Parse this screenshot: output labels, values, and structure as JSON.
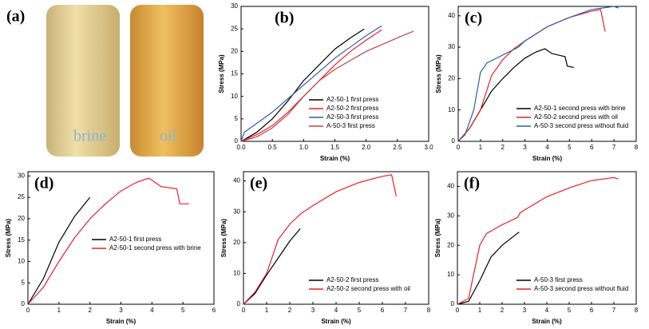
{
  "chart_data": [
    {
      "type": "image",
      "label": "(a)",
      "annotations": [
        "brine",
        "oil"
      ]
    },
    {
      "type": "line",
      "label": "(b)",
      "xlabel": "Strain (%)",
      "ylabel": "Stress (MPa)",
      "xlim": [
        0,
        3
      ],
      "xticks": [
        {
          "value": 0,
          "label": "0.0"
        },
        0.5,
        {
          "value": 1,
          "label": "1.0"
        },
        1.5,
        {
          "value": 2,
          "label": "2.0"
        },
        2.5,
        {
          "value": 3,
          "label": "3.0"
        }
      ],
      "ylim": [
        0,
        30
      ],
      "yticks": [
        0,
        5,
        10,
        15,
        20,
        25,
        30
      ],
      "legend": "lower right",
      "series": [
        {
          "name": "A2-50-1 first press",
          "color": "#000000",
          "x": [
            0,
            0.25,
            0.5,
            0.75,
            1.0,
            1.25,
            1.5,
            1.75,
            1.97
          ],
          "values": [
            0,
            2,
            5,
            9,
            13.5,
            17,
            20.5,
            23,
            25
          ]
        },
        {
          "name": "A2-50-2 first press",
          "color": "#e8202a",
          "x": [
            0,
            0.25,
            0.5,
            0.75,
            1.0,
            1.25,
            1.5,
            1.75,
            2.0,
            2.25
          ],
          "values": [
            0,
            1.5,
            3.5,
            6.5,
            10,
            13.5,
            17,
            20,
            22.5,
            24.8
          ]
        },
        {
          "name": "A2-50-3 first press",
          "color": "#2a5db0",
          "x": [
            0,
            0.05,
            0.25,
            0.5,
            0.75,
            1.0,
            1.25,
            1.5,
            1.75,
            2.0,
            2.25
          ],
          "values": [
            0,
            2,
            4,
            6.5,
            9.5,
            12.5,
            15.5,
            18.5,
            21,
            23.5,
            25.7
          ]
        },
        {
          "name": "A-50-3 first press",
          "color": "#c0404a",
          "x": [
            0,
            0.25,
            0.5,
            0.75,
            1.0,
            1.25,
            1.5,
            1.75,
            2.0,
            2.25,
            2.5,
            2.76
          ],
          "values": [
            0,
            1,
            3,
            6,
            10,
            13.5,
            16,
            18,
            20,
            21.5,
            23,
            24.5
          ]
        }
      ]
    },
    {
      "type": "line",
      "label": "(c)",
      "xlabel": "Strain (%)",
      "ylabel": "Stress (MPa)",
      "xlim": [
        0,
        8
      ],
      "xticks": [
        0,
        1,
        2,
        3,
        4,
        5,
        6,
        7,
        8
      ],
      "ylim": [
        0,
        43
      ],
      "yticks": [
        0,
        10,
        20,
        30,
        40
      ],
      "legend": "lower right",
      "series": [
        {
          "name": "A2-50-1 second press with brine",
          "color": "#000000",
          "x": [
            0,
            0.5,
            1,
            1.5,
            2,
            2.5,
            3,
            3.5,
            3.9,
            4.2,
            4.5,
            4.8,
            4.9,
            5.2
          ],
          "values": [
            0,
            4,
            10,
            16,
            20,
            23.5,
            26.5,
            28.5,
            29.5,
            28,
            27.5,
            27,
            24,
            23.5
          ]
        },
        {
          "name": "A2-50-2 second press with oil",
          "color": "#e8202a",
          "x": [
            0,
            0.5,
            1,
            1.5,
            2,
            2.5,
            3,
            4,
            5,
            6,
            6.4,
            6.6
          ],
          "values": [
            0,
            4,
            10,
            21,
            26,
            29.5,
            32,
            36.5,
            39.5,
            41.5,
            42,
            35
          ]
        },
        {
          "name": "A-50-3 second press without fluid",
          "color": "#2a5db0",
          "x": [
            0,
            0.3,
            0.7,
            1,
            1.3,
            2,
            2.7,
            3,
            4,
            5,
            6,
            7,
            7.2
          ],
          "values": [
            0,
            2,
            10,
            22,
            25,
            27.5,
            30,
            32,
            36.5,
            39.5,
            42,
            43,
            42.5
          ]
        }
      ]
    },
    {
      "type": "line",
      "label": "(d)",
      "xlabel": "Strain (%)",
      "ylabel": "Stress (MPa)",
      "xlim": [
        0,
        6
      ],
      "xticks": [
        0,
        1,
        2,
        3,
        4,
        5,
        6
      ],
      "ylim": [
        0,
        31
      ],
      "yticks": [
        0,
        5,
        10,
        15,
        20,
        25,
        30
      ],
      "legend": "center",
      "series": [
        {
          "name": "A2-50-1 first press",
          "color": "#000000",
          "x": [
            0,
            0.5,
            1,
            1.5,
            2
          ],
          "values": [
            0,
            6,
            14.5,
            20.5,
            25
          ]
        },
        {
          "name": "A2-50-1 second press with brine",
          "color": "#e8202a",
          "x": [
            0,
            0.5,
            1,
            1.5,
            2,
            2.5,
            3,
            3.5,
            3.9,
            4.1,
            4.3,
            4.8,
            4.9,
            5.2
          ],
          "values": [
            0,
            4,
            10,
            15.5,
            20,
            23.5,
            26.5,
            28.5,
            29.5,
            28.5,
            27.5,
            27,
            23.5,
            23.5
          ]
        }
      ]
    },
    {
      "type": "line",
      "label": "(e)",
      "xlabel": "Strain (%)",
      "ylabel": "Stress (MPa)",
      "xlim": [
        0,
        8
      ],
      "xticks": [
        0,
        1,
        2,
        3,
        4,
        5,
        6,
        7,
        8
      ],
      "ylim": [
        0,
        43
      ],
      "yticks": [
        0,
        10,
        20,
        30,
        40
      ],
      "legend": "lower right",
      "series": [
        {
          "name": "A2-50-2 first press",
          "color": "#000000",
          "x": [
            0,
            0.5,
            1,
            1.5,
            2,
            2.45
          ],
          "values": [
            0,
            3.5,
            9.5,
            15,
            20.5,
            24.5
          ]
        },
        {
          "name": "A2-50-2 second press with oil",
          "color": "#e8202a",
          "x": [
            0,
            0.5,
            1,
            1.5,
            2,
            2.5,
            3,
            4,
            5,
            6,
            6.4,
            6.6
          ],
          "values": [
            0,
            4,
            10,
            21,
            26,
            29.5,
            32,
            36.5,
            39.5,
            41.5,
            42,
            35
          ]
        }
      ]
    },
    {
      "type": "line",
      "label": "(f)",
      "xlabel": "Strain (%)",
      "ylabel": "Stress (MPa)",
      "xlim": [
        0,
        8
      ],
      "xticks": [
        0,
        1,
        2,
        3,
        4,
        5,
        6,
        7,
        8
      ],
      "ylim": [
        0,
        45
      ],
      "yticks": [
        0,
        10,
        20,
        30,
        40
      ],
      "legend": "lower right",
      "series": [
        {
          "name": "A-50-3 first press",
          "color": "#000000",
          "x": [
            0,
            0.5,
            1,
            1.5,
            2,
            2.5,
            2.76
          ],
          "values": [
            0,
            1,
            8,
            16,
            20,
            23,
            24.5
          ]
        },
        {
          "name": "A-50-3 second press without fluid",
          "color": "#e8202a",
          "x": [
            0,
            0.5,
            1,
            1.3,
            2,
            2.7,
            2.8,
            3,
            4,
            5,
            6,
            7,
            7.2
          ],
          "values": [
            0,
            2,
            20,
            24,
            27,
            29.5,
            31,
            32,
            36.5,
            39.5,
            42,
            43,
            42.5
          ]
        }
      ]
    }
  ]
}
